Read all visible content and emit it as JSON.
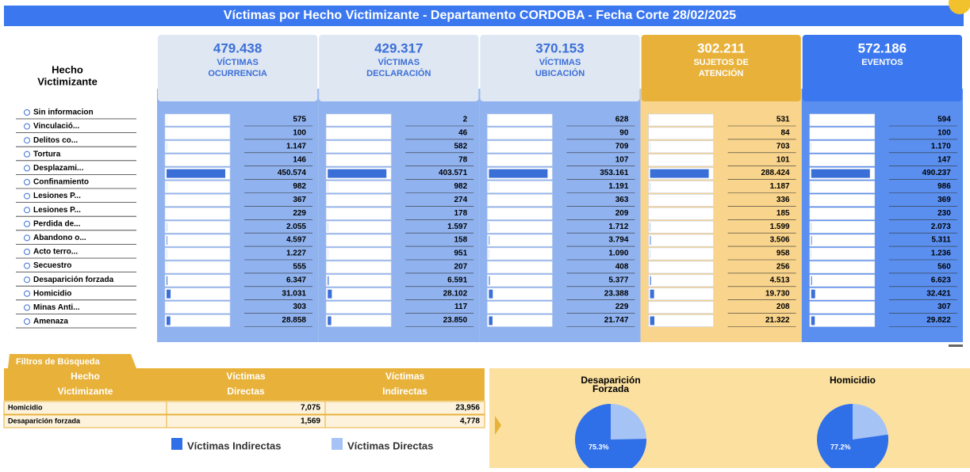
{
  "header": {
    "title": "Víctimas por Hecho Victimizante - Departamento CORDOBA - Fecha Corte 28/02/2025"
  },
  "row_header": [
    "Hecho",
    "Victimizante"
  ],
  "rows": [
    "Sin informacion",
    "Vinculació...",
    "Delitos co...",
    "Tortura",
    "Desplazami...",
    "Confinamiento",
    "Lesiones P...",
    "Lesiones P...",
    "Perdida de...",
    "Abandono o...",
    "Acto terro...",
    "Secuestro",
    "Desaparición forzada",
    "Homicidio",
    "Minas Anti...",
    "Amenaza"
  ],
  "columns": [
    {
      "total": "479.438",
      "label": [
        "VÍCTIMAS",
        "OCURRENCIA"
      ],
      "values": [
        575,
        100,
        1147,
        146,
        450574,
        982,
        367,
        229,
        2055,
        4597,
        1227,
        555,
        6347,
        31031,
        303,
        28858
      ],
      "value_labels": [
        "575",
        "100",
        "1.147",
        "146",
        "450.574",
        "982",
        "367",
        "229",
        "2.055",
        "4.597",
        "1.227",
        "555",
        "6.347",
        "31.031",
        "303",
        "28.858"
      ]
    },
    {
      "total": "429.317",
      "label": [
        "VÍCTIMAS",
        "DECLARACIÓN"
      ],
      "values": [
        2,
        46,
        582,
        78,
        403571,
        982,
        274,
        178,
        1597,
        158,
        951,
        207,
        6591,
        28102,
        117,
        23850
      ],
      "value_labels": [
        "2",
        "46",
        "582",
        "78",
        "403.571",
        "982",
        "274",
        "178",
        "1.597",
        "158",
        "951",
        "207",
        "6.591",
        "28.102",
        "117",
        "23.850"
      ]
    },
    {
      "total": "370.153",
      "label": [
        "VÍCTIMAS",
        "UBICACIÓN"
      ],
      "values": [
        628,
        90,
        709,
        107,
        353161,
        1191,
        363,
        209,
        1712,
        3794,
        1090,
        408,
        5377,
        23388,
        229,
        21747
      ],
      "value_labels": [
        "628",
        "90",
        "709",
        "107",
        "353.161",
        "1.191",
        "363",
        "209",
        "1.712",
        "3.794",
        "1.090",
        "408",
        "5.377",
        "23.388",
        "229",
        "21.747"
      ]
    },
    {
      "total": "302.211",
      "label": [
        "SUJETOS DE",
        "ATENCIÓN"
      ],
      "values": [
        531,
        84,
        703,
        101,
        288424,
        1187,
        336,
        185,
        1599,
        3506,
        958,
        256,
        4513,
        19730,
        208,
        21322
      ],
      "value_labels": [
        "531",
        "84",
        "703",
        "101",
        "288.424",
        "1.187",
        "336",
        "185",
        "1.599",
        "3.506",
        "958",
        "256",
        "4.513",
        "19.730",
        "208",
        "21.322"
      ]
    },
    {
      "total": "572.186",
      "label": [
        "EVENTOS"
      ],
      "values": [
        594,
        100,
        1170,
        147,
        490237,
        986,
        369,
        230,
        2073,
        5311,
        1236,
        560,
        6623,
        32421,
        307,
        29822
      ],
      "value_labels": [
        "594",
        "100",
        "1.170",
        "147",
        "490.237",
        "986",
        "369",
        "230",
        "2.073",
        "5.311",
        "1.236",
        "560",
        "6.623",
        "32.421",
        "307",
        "29.822"
      ]
    }
  ],
  "filters": {
    "tab": "Filtros de Búsqueda",
    "headers": [
      [
        "Hecho",
        "Victimizante"
      ],
      [
        "Víctimas",
        "Directas"
      ],
      [
        "Víctimas",
        "Indirectas"
      ]
    ],
    "rows": [
      [
        "Homicidio",
        "7,075",
        "23,956"
      ],
      [
        "Desaparición forzada",
        "1,569",
        "4,778"
      ]
    ]
  },
  "legend": [
    "Víctimas Indirectas",
    "Víctimas Directas"
  ],
  "pies": [
    {
      "title": [
        "Desaparición",
        "Forzada"
      ],
      "value": 75.3,
      "label": "75.3%"
    },
    {
      "title": [
        "Homicidio"
      ],
      "value": 77.2,
      "label": "77.2%"
    }
  ]
}
